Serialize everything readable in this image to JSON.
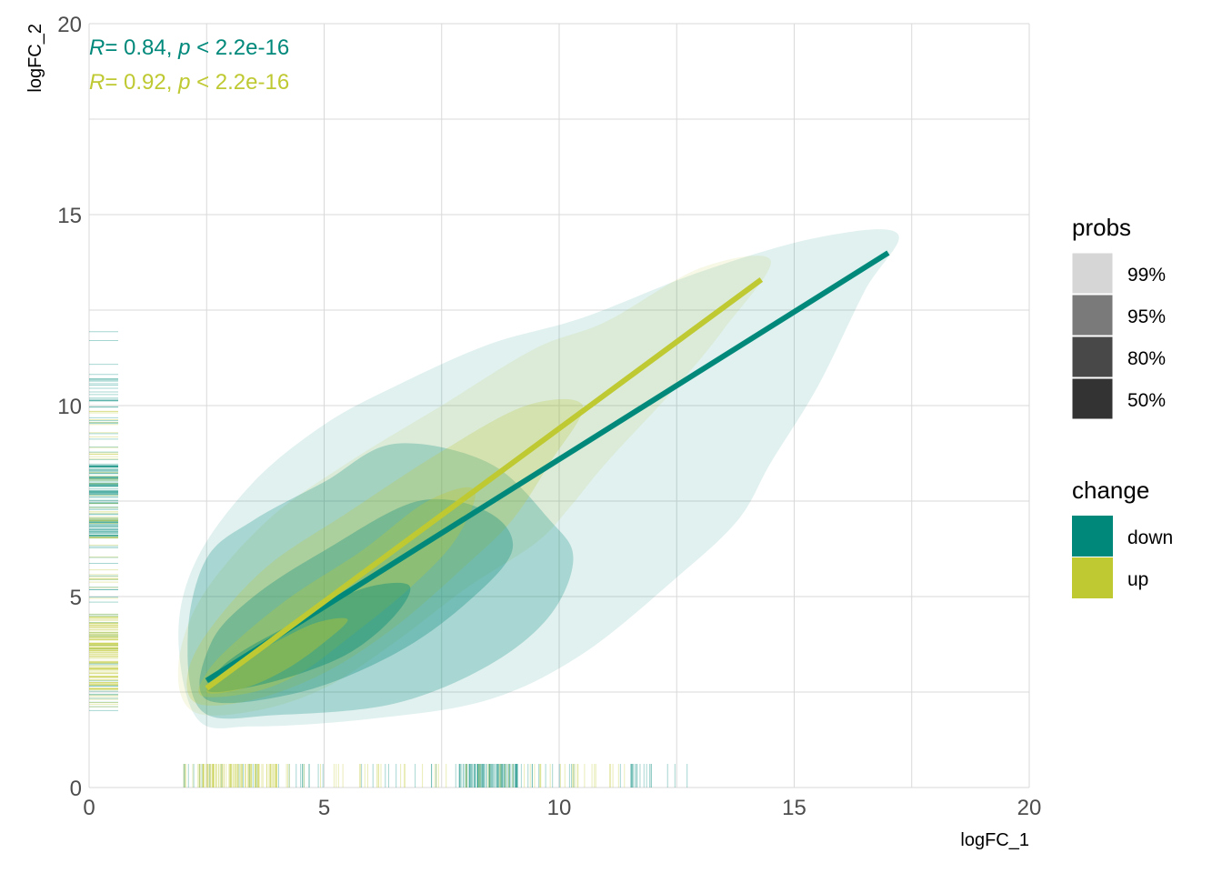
{
  "chart_data": {
    "type": "scatter",
    "subtype": "2d-density-contour-with-regression-and-rug",
    "title": "",
    "xlabel": "logFC_1",
    "ylabel": "logFC_2",
    "xlim": [
      0,
      20
    ],
    "ylim": [
      0,
      20
    ],
    "x_ticks": [
      0,
      5,
      10,
      15,
      20
    ],
    "y_ticks": [
      0,
      5,
      10,
      15,
      20
    ],
    "grid": true,
    "stats": [
      {
        "group": "down",
        "r_label": "R",
        "r_value": "= 0.84, ",
        "p_label": "p",
        "p_value": " < 2.2e-16"
      },
      {
        "group": "up",
        "r_label": "R",
        "r_value": "= 0.92, ",
        "p_label": "p",
        "p_value": " < 2.2e-16"
      }
    ],
    "series": [
      {
        "name": "down",
        "color": "#00897b",
        "regression": {
          "x": [
            2.5,
            17.0
          ],
          "y": [
            2.8,
            14.0
          ]
        },
        "contours": [
          {
            "level": "99%",
            "points": [
              [
                2.3,
                1.8
              ],
              [
                3.5,
                1.6
              ],
              [
                6,
                1.8
              ],
              [
                8.5,
                2.3
              ],
              [
                10.5,
                3.5
              ],
              [
                12.5,
                5.5
              ],
              [
                13.8,
                7.0
              ],
              [
                14.5,
                8.5
              ],
              [
                15.5,
                10.5
              ],
              [
                16.5,
                13.0
              ],
              [
                17.2,
                14.5
              ],
              [
                15.5,
                14.4
              ],
              [
                13,
                13.5
              ],
              [
                10.5,
                12.3
              ],
              [
                8.5,
                11.6
              ],
              [
                6.5,
                10.5
              ],
              [
                5,
                9.5
              ],
              [
                3.5,
                8.0
              ],
              [
                2.3,
                6.0
              ],
              [
                1.9,
                4.0
              ]
            ]
          },
          {
            "level": "95%",
            "points": [
              [
                2.4,
                2.0
              ],
              [
                4,
                1.9
              ],
              [
                6.5,
                2.2
              ],
              [
                8.5,
                3.2
              ],
              [
                9.8,
                4.5
              ],
              [
                10.3,
                6.0
              ],
              [
                9.8,
                7.0
              ],
              [
                8.5,
                8.5
              ],
              [
                6.5,
                9.0
              ],
              [
                5,
                8.0
              ],
              [
                3.5,
                7.0
              ],
              [
                2.5,
                6.0
              ],
              [
                2.1,
                4.0
              ]
            ]
          },
          {
            "level": "80%",
            "points": [
              [
                2.5,
                2.3
              ],
              [
                4.5,
                2.5
              ],
              [
                6.5,
                3.5
              ],
              [
                8,
                4.8
              ],
              [
                9,
                6.2
              ],
              [
                8.5,
                7.2
              ],
              [
                7,
                7.5
              ],
              [
                5,
                6.2
              ],
              [
                3.5,
                5.0
              ],
              [
                2.6,
                3.8
              ]
            ]
          },
          {
            "level": "50%",
            "points": [
              [
                2.6,
                2.5
              ],
              [
                4,
                2.8
              ],
              [
                5.5,
                3.5
              ],
              [
                6.5,
                4.5
              ],
              [
                6.8,
                5.3
              ],
              [
                5.8,
                5.2
              ],
              [
                4.5,
                4.4
              ],
              [
                3.3,
                3.6
              ],
              [
                2.7,
                3.0
              ]
            ]
          }
        ]
      },
      {
        "name": "up",
        "color": "#bfc932",
        "regression": {
          "x": [
            2.5,
            14.3
          ],
          "y": [
            2.6,
            13.3
          ]
        },
        "contours": [
          {
            "level": "99%",
            "points": [
              [
                2.2,
                2.0
              ],
              [
                3.5,
                2.0
              ],
              [
                5,
                2.6
              ],
              [
                6.5,
                3.8
              ],
              [
                8,
                5.2
              ],
              [
                9.5,
                6.4
              ],
              [
                10.2,
                7.3
              ],
              [
                11,
                8.5
              ],
              [
                12.5,
                10.5
              ],
              [
                13.5,
                12.0
              ],
              [
                14.5,
                13.8
              ],
              [
                13,
                13.6
              ],
              [
                11,
                12.2
              ],
              [
                9.5,
                11.5
              ],
              [
                7.5,
                10.0
              ],
              [
                5.5,
                8.5
              ],
              [
                3.8,
                7.0
              ],
              [
                2.4,
                5.0
              ],
              [
                1.9,
                3.2
              ]
            ]
          },
          {
            "level": "95%",
            "points": [
              [
                2.3,
                2.2
              ],
              [
                3.5,
                2.3
              ],
              [
                5,
                3.0
              ],
              [
                6.5,
                4.2
              ],
              [
                8,
                5.8
              ],
              [
                9,
                7.0
              ],
              [
                9.8,
                8.5
              ],
              [
                10.5,
                10.0
              ],
              [
                9.3,
                10.0
              ],
              [
                7.5,
                8.8
              ],
              [
                5.5,
                7.2
              ],
              [
                3.8,
                5.8
              ],
              [
                2.6,
                4.2
              ],
              [
                2.1,
                3.0
              ]
            ]
          },
          {
            "level": "80%",
            "points": [
              [
                2.4,
                2.4
              ],
              [
                3.5,
                2.5
              ],
              [
                4.5,
                3.0
              ],
              [
                5.5,
                3.9
              ],
              [
                6.8,
                5.2
              ],
              [
                7.8,
                6.5
              ],
              [
                8.2,
                7.8
              ],
              [
                7.2,
                7.5
              ],
              [
                5.8,
                6.2
              ],
              [
                4.3,
                5.0
              ],
              [
                3.1,
                3.8
              ],
              [
                2.5,
                3.0
              ]
            ]
          },
          {
            "level": "50%",
            "points": [
              [
                2.5,
                2.5
              ],
              [
                3.3,
                2.6
              ],
              [
                4.2,
                3.1
              ],
              [
                5.0,
                3.8
              ],
              [
                5.5,
                4.4
              ],
              [
                4.8,
                4.3
              ],
              [
                3.8,
                3.7
              ],
              [
                3.0,
                3.2
              ]
            ]
          }
        ]
      }
    ],
    "rug": [
      {
        "group": "down",
        "axis": "x",
        "dense_range": [
          7.8,
          9.2
        ],
        "sparse_range": [
          2.0,
          12.8
        ]
      },
      {
        "group": "up",
        "axis": "x",
        "dense_range": [
          2.3,
          4.0
        ],
        "sparse_range": [
          2.0,
          11.5
        ]
      },
      {
        "group": "down",
        "axis": "y",
        "dense_range": [
          6.5,
          8.5
        ],
        "sparse_range": [
          2.0,
          12.0
        ]
      },
      {
        "group": "up",
        "axis": "y",
        "dense_range": [
          2.5,
          4.5
        ],
        "sparse_range": [
          2.0,
          10.0
        ]
      }
    ],
    "legend": {
      "position": "right",
      "probs": {
        "title": "probs",
        "items": [
          {
            "label": "99%",
            "color": "#d6d6d6"
          },
          {
            "label": "95%",
            "color": "#7a7a7a"
          },
          {
            "label": "80%",
            "color": "#484848"
          },
          {
            "label": "50%",
            "color": "#333333"
          }
        ]
      },
      "change": {
        "title": "change",
        "items": [
          {
            "label": "down",
            "color": "#00897b"
          },
          {
            "label": "up",
            "color": "#bfc932"
          }
        ]
      }
    }
  }
}
